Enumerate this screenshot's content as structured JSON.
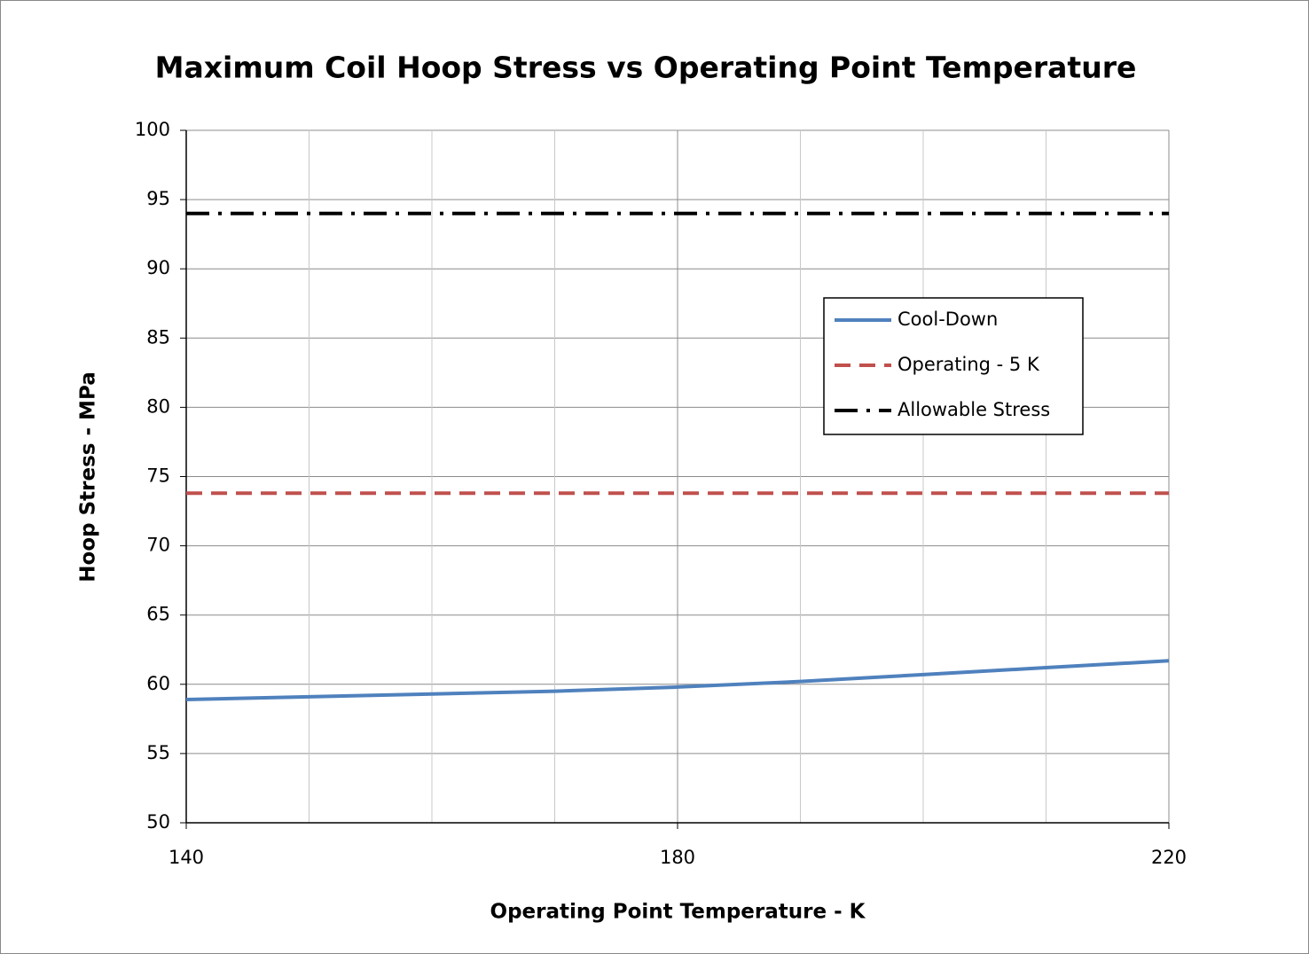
{
  "chart_data": {
    "type": "line",
    "title": "Maximum Coil Hoop Stress vs Operating Point Temperature",
    "x_label": "Operating Point Temperature - K",
    "y_label": "Hoop Stress - MPa",
    "series": [
      {
        "name": "Cool-Down",
        "color": "#4f81bd",
        "dash": "solid",
        "x": [
          140,
          150,
          160,
          170,
          180,
          190,
          200,
          210,
          220
        ],
        "values": [
          58.9,
          59.1,
          59.3,
          59.5,
          59.8,
          60.2,
          60.7,
          61.2,
          61.7
        ]
      },
      {
        "name": "Operating - 5 K",
        "color": "#c0504d",
        "dash": "dash",
        "x": [
          140,
          220
        ],
        "values": [
          73.8,
          73.8
        ]
      },
      {
        "name": "Allowable Stress",
        "color": "#000000",
        "dash": "dashdot",
        "x": [
          140,
          220
        ],
        "values": [
          94,
          94
        ]
      }
    ],
    "xlim": [
      140,
      220
    ],
    "xticks": [
      140,
      180,
      220
    ],
    "xminorticks": [
      150,
      160,
      170,
      190,
      200,
      210
    ],
    "ylim": [
      50,
      100
    ],
    "yticks": [
      50,
      55,
      60,
      65,
      70,
      75,
      80,
      85,
      90,
      95,
      100
    ],
    "grid": true,
    "legend": "right"
  }
}
